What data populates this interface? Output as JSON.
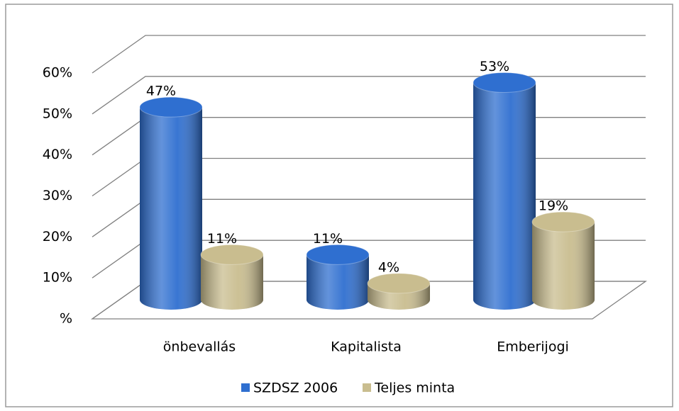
{
  "chart_data": {
    "type": "bar3d",
    "categories": [
      "önbevallás",
      "Kapitalista",
      "Emberijogi"
    ],
    "series": [
      {
        "name": "SZDSZ 2006",
        "color": "#2f6fd0",
        "values": [
          47,
          11,
          53
        ],
        "value_labels": [
          "47%",
          "11%",
          "53%"
        ]
      },
      {
        "name": "Teljes minta",
        "color": "#c9bd8f",
        "values": [
          11,
          4,
          19
        ],
        "value_labels": [
          "11%",
          "4%",
          "19%"
        ]
      }
    ],
    "ylim": [
      0,
      60
    ],
    "yticks": [
      {
        "value": 0,
        "label": "%"
      },
      {
        "value": 10,
        "label": "10%"
      },
      {
        "value": 20,
        "label": "20%"
      },
      {
        "value": 30,
        "label": "30%"
      },
      {
        "value": 40,
        "label": "40%"
      },
      {
        "value": 50,
        "label": "50%"
      },
      {
        "value": 60,
        "label": "60%"
      }
    ],
    "grid": true,
    "legend": "bottom"
  }
}
